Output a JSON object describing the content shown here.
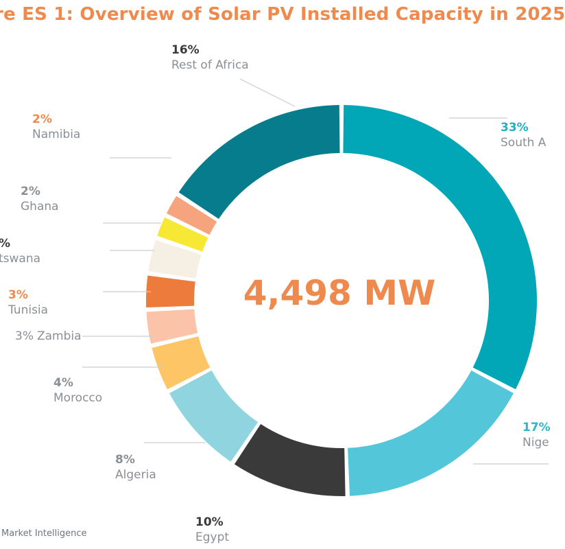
{
  "chart_data": {
    "type": "pie",
    "title": "re ES 1: Overview of Solar PV Installed Capacity in 2025",
    "center_label": "4,498 MW",
    "slices": [
      {
        "label": "South A",
        "pct_text": "33%",
        "value": 33,
        "color": "#01a7b7",
        "pct_color": "#1fb0c2"
      },
      {
        "label": "Nige",
        "pct_text": "17%",
        "value": 17,
        "color": "#54c6da",
        "pct_color": "#2cb6c8"
      },
      {
        "label": "Egypt",
        "pct_text": "10%",
        "value": 10,
        "color": "#3a3a3a",
        "pct_color": "#3a3a3a"
      },
      {
        "label": "Algeria",
        "pct_text": "8%",
        "value": 8,
        "color": "#8fd4df",
        "pct_color": "#8a8f96"
      },
      {
        "label": "Morocco",
        "pct_text": "4%",
        "value": 4,
        "color": "#fdc566",
        "pct_color": "#8a8f96"
      },
      {
        "label": "Zambia",
        "pct_text": "3%",
        "value": 3,
        "color": "#fbc4a8",
        "pct_color": "#8a8f96"
      },
      {
        "label": "Tunisia",
        "pct_text": "3%",
        "value": 3,
        "color": "#ec7b3c",
        "pct_color": "#ef8a4e"
      },
      {
        "label": "tswana",
        "pct_text": "%",
        "value": 3,
        "color": "#f5efe4",
        "pct_color": "#3a3a3a"
      },
      {
        "label": "Ghana",
        "pct_text": "2%",
        "value": 2,
        "color": "#f8e836",
        "pct_color": "#8a8f96"
      },
      {
        "label": "Namibia",
        "pct_text": "2%",
        "value": 2,
        "color": "#f5a47e",
        "pct_color": "#ef8a4e"
      },
      {
        "label": "Rest of Africa",
        "pct_text": "16%",
        "value": 16,
        "color": "#067c8c",
        "pct_color": "#3a3a3a"
      }
    ]
  },
  "footer": {
    "source": "Market Intelligence"
  }
}
